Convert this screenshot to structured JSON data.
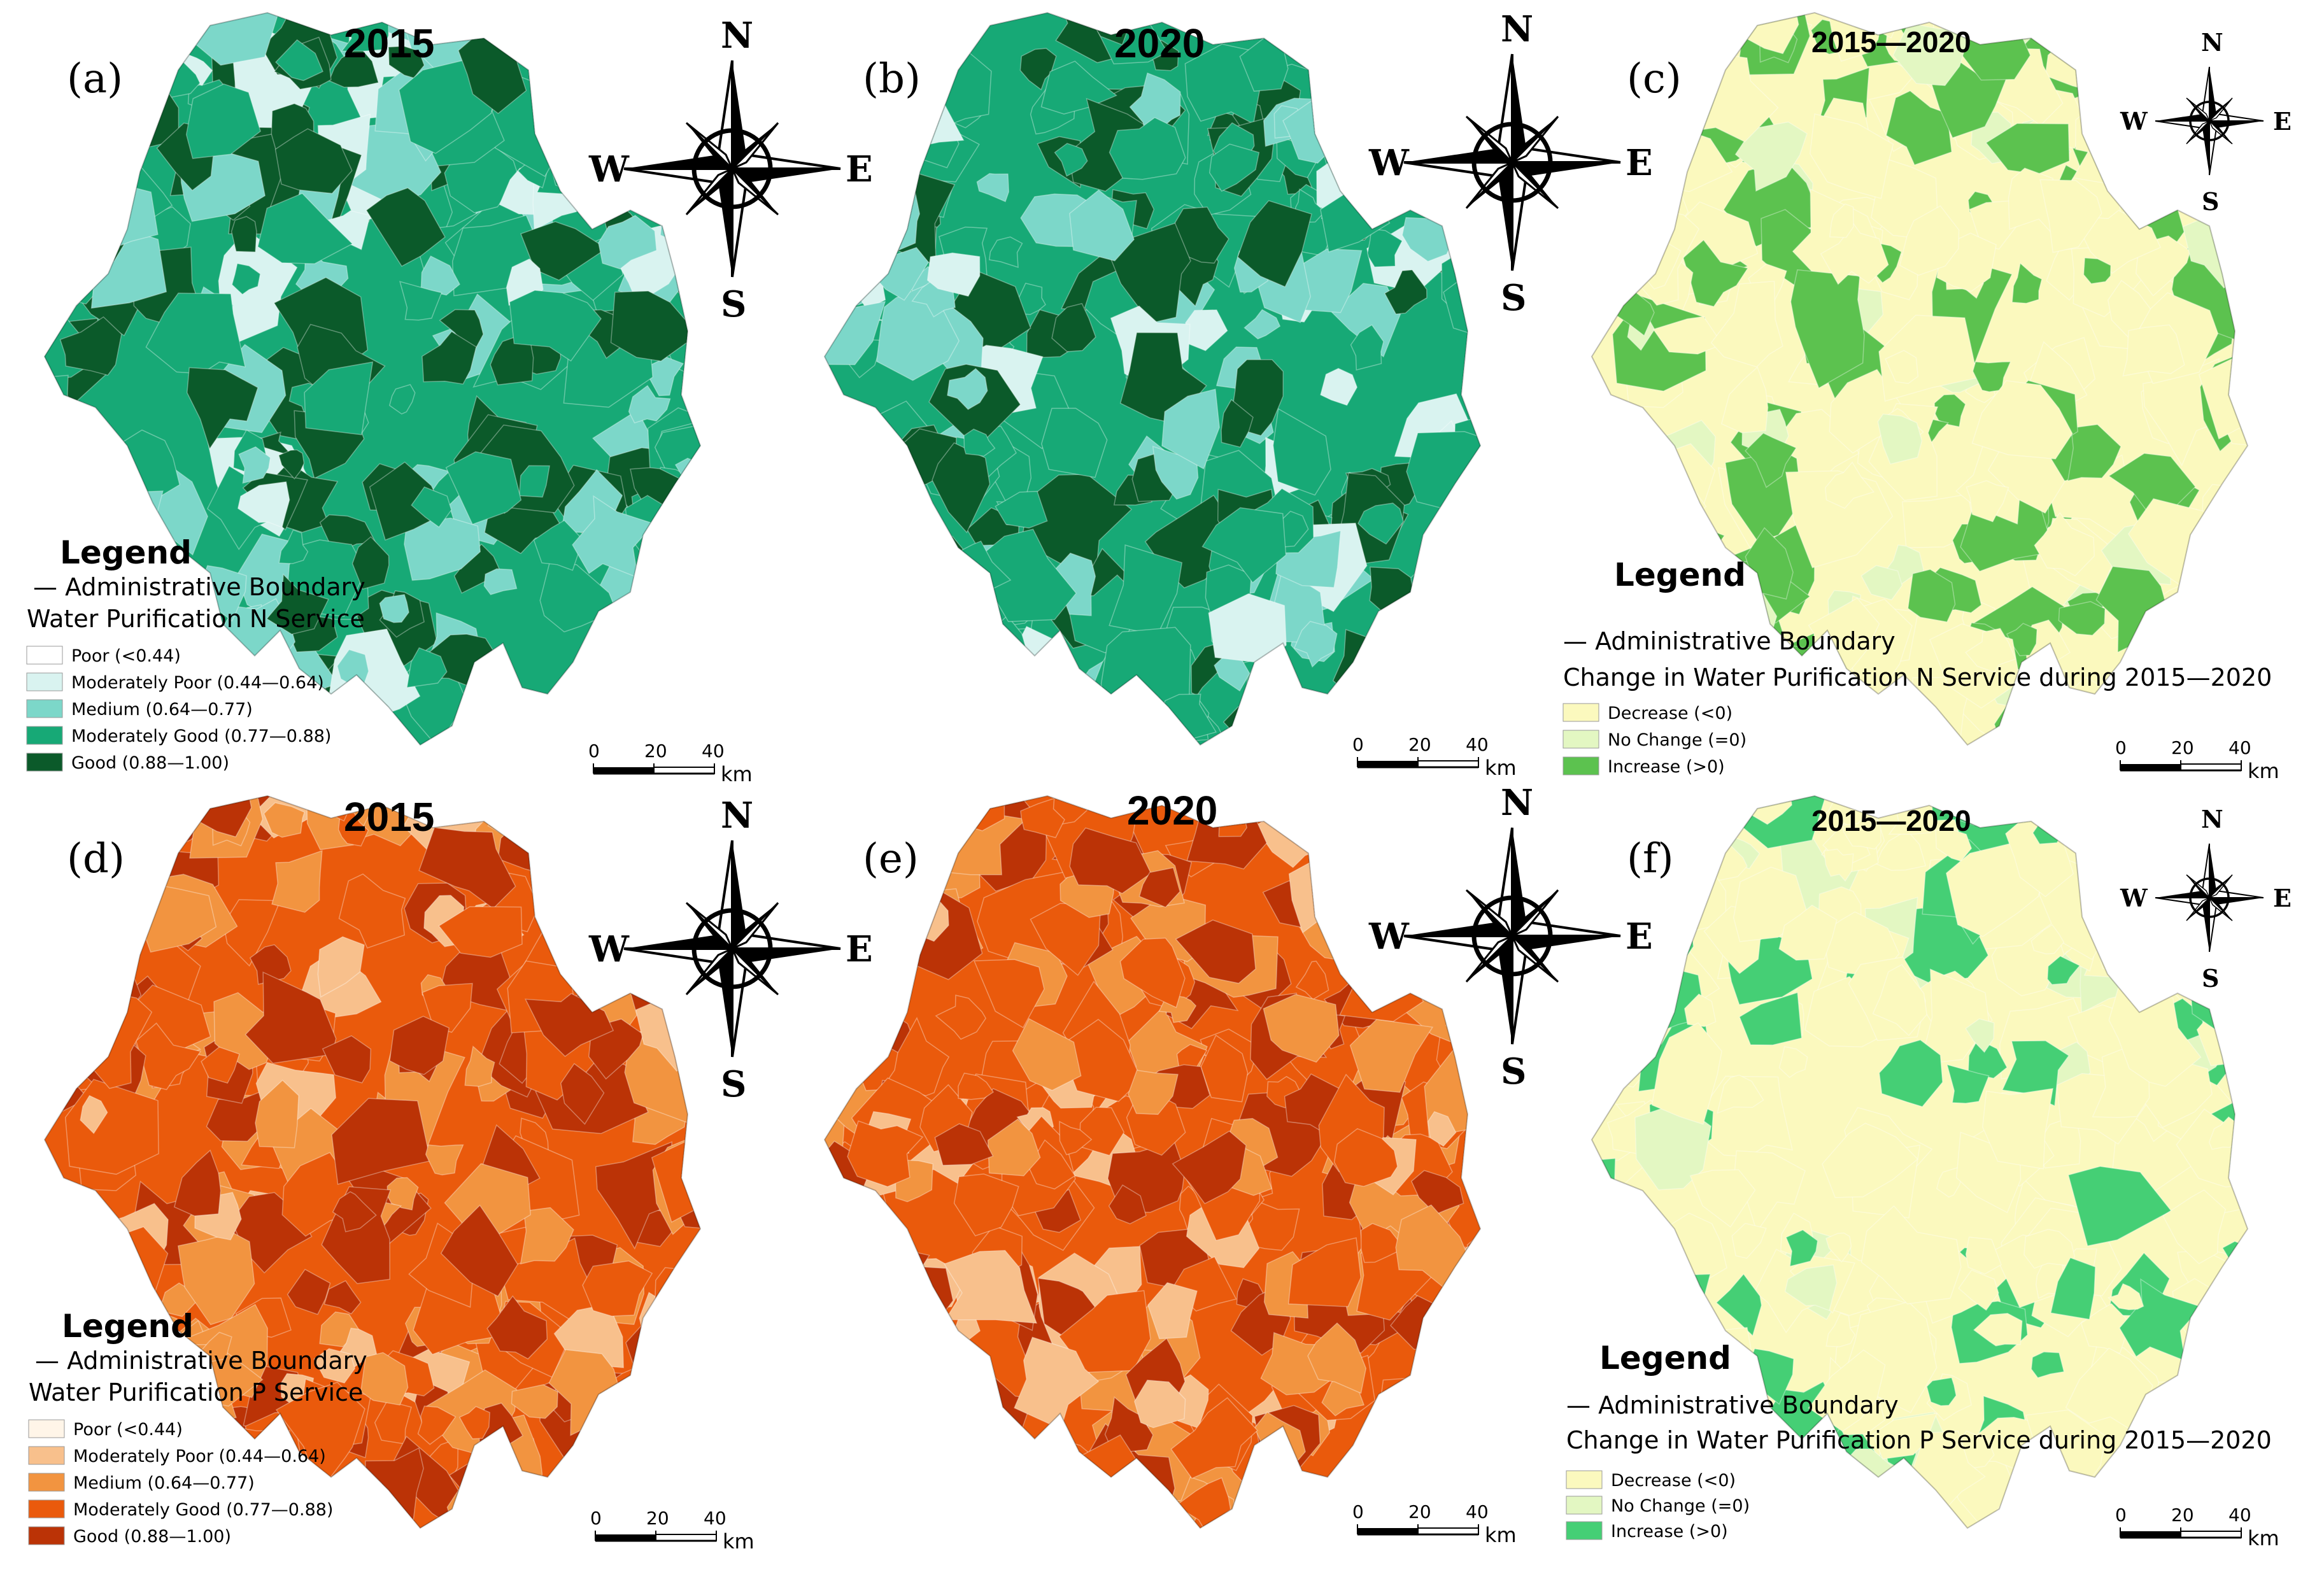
{
  "colors": {
    "n_poor": "#ffffff",
    "n_moderately_poor": "#d9f3f0",
    "n_medium": "#7cd7c9",
    "n_moderately_good": "#17a976",
    "n_good": "#0b5a2a",
    "p_poor": "#fff5e8",
    "p_moderately_poor": "#f8c08c",
    "p_medium": "#f29440",
    "p_moderately_good": "#ea5a0c",
    "p_good": "#bb3306",
    "change_decrease": "#fbf9be",
    "change_no_change": "#e3f7c2",
    "change_increase_n": "#5cc24f",
    "change_increase_p": "#45cf75"
  },
  "panels": {
    "a": {
      "label": "(a)",
      "title": "2015"
    },
    "b": {
      "label": "(b)",
      "title": "2020"
    },
    "c": {
      "label": "(c)",
      "title": "2015—2020"
    },
    "d": {
      "label": "(d)",
      "title": "2015"
    },
    "e": {
      "label": "(e)",
      "title": "2020"
    },
    "f": {
      "label": "(f)",
      "title": "2015—2020"
    }
  },
  "compass": {
    "n": "N",
    "s": "S",
    "e": "E",
    "w": "W"
  },
  "scale": {
    "t0": "0",
    "t1": "20",
    "t2": "40",
    "unit": "km"
  },
  "legend_n": {
    "heading": "Legend",
    "boundary": "— Administrative Boundary",
    "title": "Water Purification N Service",
    "items": [
      {
        "label": "Poor (<0.44)"
      },
      {
        "label": "Moderately Poor (0.44—0.64)"
      },
      {
        "label": "Medium (0.64—0.77)"
      },
      {
        "label": "Moderately Good (0.77—0.88)"
      },
      {
        "label": "Good (0.88—1.00)"
      }
    ]
  },
  "legend_p": {
    "heading": "Legend",
    "boundary": "— Administrative Boundary",
    "title": "Water Purification P Service",
    "items": [
      {
        "label": "Poor (<0.44)"
      },
      {
        "label": "Moderately Poor (0.44—0.64)"
      },
      {
        "label": "Medium (0.64—0.77)"
      },
      {
        "label": "Moderately Good (0.77—0.88)"
      },
      {
        "label": "Good (0.88—1.00)"
      }
    ]
  },
  "legend_change_n": {
    "heading": "Legend",
    "boundary": "— Administrative Boundary",
    "title": "Change in Water Purification N Service during 2015—2020",
    "items": [
      {
        "label": "Decrease (<0)"
      },
      {
        "label": "No Change (=0)"
      },
      {
        "label": "Increase (>0)"
      }
    ]
  },
  "legend_change_p": {
    "heading": "Legend",
    "boundary": "— Administrative Boundary",
    "title": "Change in Water Purification P Service during 2015—2020",
    "items": [
      {
        "label": "Decrease (<0)"
      },
      {
        "label": "No Change (=0)"
      },
      {
        "label": "Increase (>0)"
      }
    ]
  }
}
